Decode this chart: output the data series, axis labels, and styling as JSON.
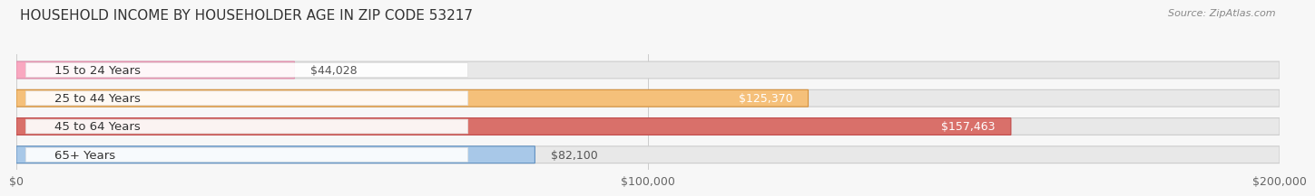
{
  "title": "HOUSEHOLD INCOME BY HOUSEHOLDER AGE IN ZIP CODE 53217",
  "source": "Source: ZipAtlas.com",
  "categories": [
    "15 to 24 Years",
    "25 to 44 Years",
    "45 to 64 Years",
    "65+ Years"
  ],
  "values": [
    44028,
    125370,
    157463,
    82100
  ],
  "bar_colors": [
    "#F9A8C0",
    "#F5C07A",
    "#D9706A",
    "#A8C8E8"
  ],
  "bar_edge_colors": [
    "#e08aaa",
    "#d4903a",
    "#c04848",
    "#6090C0"
  ],
  "xlim": [
    0,
    200000
  ],
  "xticks": [
    0,
    100000,
    200000
  ],
  "xtick_labels": [
    "$0",
    "$100,000",
    "$200,000"
  ],
  "background_color": "#f7f7f7",
  "bar_bg_color": "#e8e8e8",
  "bar_bg_edge": "#cccccc",
  "title_fontsize": 11,
  "source_fontsize": 8,
  "tick_fontsize": 9,
  "label_fontsize": 9,
  "category_fontsize": 9.5
}
